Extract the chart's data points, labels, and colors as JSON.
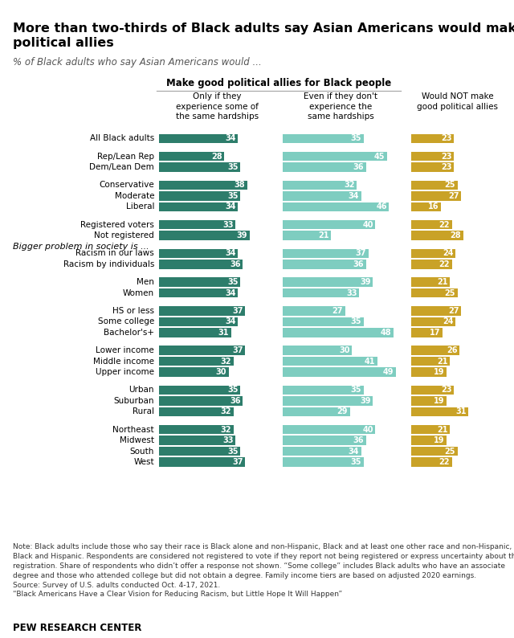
{
  "title": "More than two-thirds of Black adults say Asian Americans would make good\npolitical allies",
  "subtitle": "% of Black adults who say Asian Americans would ...",
  "col1_header": "Make good political allies for Black people",
  "col1a_header": "Only if they\nexperience some of\nthe same hardships",
  "col1b_header": "Even if they don't\nexperience the\nsame hardships",
  "col2_header": "Would NOT make\ngood political allies",
  "rows": [
    {
      "label": "All Black adults",
      "v1": 34,
      "v2": 35,
      "v3": 23,
      "gap_before": false,
      "section": null
    },
    {
      "label": null,
      "v1": null,
      "v2": null,
      "v3": null,
      "gap_before": false,
      "section": null
    },
    {
      "label": "Rep/Lean Rep",
      "v1": 28,
      "v2": 45,
      "v3": 23,
      "gap_before": false,
      "section": null
    },
    {
      "label": "Dem/Lean Dem",
      "v1": 35,
      "v2": 36,
      "v3": 23,
      "gap_before": false,
      "section": null
    },
    {
      "label": null,
      "v1": null,
      "v2": null,
      "v3": null,
      "gap_before": false,
      "section": null
    },
    {
      "label": "Conservative",
      "v1": 38,
      "v2": 32,
      "v3": 25,
      "gap_before": false,
      "section": null
    },
    {
      "label": "Moderate",
      "v1": 35,
      "v2": 34,
      "v3": 27,
      "gap_before": false,
      "section": null
    },
    {
      "label": "Liberal",
      "v1": 34,
      "v2": 46,
      "v3": 16,
      "gap_before": false,
      "section": null
    },
    {
      "label": null,
      "v1": null,
      "v2": null,
      "v3": null,
      "gap_before": false,
      "section": null
    },
    {
      "label": "Registered voters",
      "v1": 33,
      "v2": 40,
      "v3": 22,
      "gap_before": false,
      "section": null
    },
    {
      "label": "Not registered",
      "v1": 39,
      "v2": 21,
      "v3": 28,
      "gap_before": false,
      "section": null
    },
    {
      "label": null,
      "v1": null,
      "v2": null,
      "v3": null,
      "gap_before": false,
      "section": "Bigger problem in society is ..."
    },
    {
      "label": "Racism in our laws",
      "v1": 34,
      "v2": 37,
      "v3": 24,
      "gap_before": false,
      "section": null
    },
    {
      "label": "Racism by individuals",
      "v1": 36,
      "v2": 36,
      "v3": 22,
      "gap_before": false,
      "section": null
    },
    {
      "label": null,
      "v1": null,
      "v2": null,
      "v3": null,
      "gap_before": false,
      "section": null
    },
    {
      "label": "Men",
      "v1": 35,
      "v2": 39,
      "v3": 21,
      "gap_before": false,
      "section": null
    },
    {
      "label": "Women",
      "v1": 34,
      "v2": 33,
      "v3": 25,
      "gap_before": false,
      "section": null
    },
    {
      "label": null,
      "v1": null,
      "v2": null,
      "v3": null,
      "gap_before": false,
      "section": null
    },
    {
      "label": "HS or less",
      "v1": 37,
      "v2": 27,
      "v3": 27,
      "gap_before": false,
      "section": null
    },
    {
      "label": "Some college",
      "v1": 34,
      "v2": 35,
      "v3": 24,
      "gap_before": false,
      "section": null
    },
    {
      "label": "Bachelor's+",
      "v1": 31,
      "v2": 48,
      "v3": 17,
      "gap_before": false,
      "section": null
    },
    {
      "label": null,
      "v1": null,
      "v2": null,
      "v3": null,
      "gap_before": false,
      "section": null
    },
    {
      "label": "Lower income",
      "v1": 37,
      "v2": 30,
      "v3": 26,
      "gap_before": false,
      "section": null
    },
    {
      "label": "Middle income",
      "v1": 32,
      "v2": 41,
      "v3": 21,
      "gap_before": false,
      "section": null
    },
    {
      "label": "Upper income",
      "v1": 30,
      "v2": 49,
      "v3": 19,
      "gap_before": false,
      "section": null
    },
    {
      "label": null,
      "v1": null,
      "v2": null,
      "v3": null,
      "gap_before": false,
      "section": null
    },
    {
      "label": "Urban",
      "v1": 35,
      "v2": 35,
      "v3": 23,
      "gap_before": false,
      "section": null
    },
    {
      "label": "Suburban",
      "v1": 36,
      "v2": 39,
      "v3": 19,
      "gap_before": false,
      "section": null
    },
    {
      "label": "Rural",
      "v1": 32,
      "v2": 29,
      "v3": 31,
      "gap_before": false,
      "section": null
    },
    {
      "label": null,
      "v1": null,
      "v2": null,
      "v3": null,
      "gap_before": false,
      "section": null
    },
    {
      "label": "Northeast",
      "v1": 32,
      "v2": 40,
      "v3": 21,
      "gap_before": false,
      "section": null
    },
    {
      "label": "Midwest",
      "v1": 33,
      "v2": 36,
      "v3": 19,
      "gap_before": false,
      "section": null
    },
    {
      "label": "South",
      "v1": 35,
      "v2": 34,
      "v3": 25,
      "gap_before": false,
      "section": null
    },
    {
      "label": "West",
      "v1": 37,
      "v2": 35,
      "v3": 22,
      "gap_before": false,
      "section": null
    }
  ],
  "color1": "#2d7d6b",
  "color2": "#7ecdc0",
  "color3": "#c9a227",
  "note_text": "Note: Black adults include those who say their race is Black alone and non-Hispanic, Black and at least one other race and non-Hispanic, or\nBlack and Hispanic. Respondents are considered not registered to vote if they report not being registered or express uncertainty about their\nregistration. Share of respondents who didn’t offer a response not shown. “Some college” includes Black adults who have an associate\ndegree and those who attended college but did not obtain a degree. Family income tiers are based on adjusted 2020 earnings.\nSource: Survey of U.S. adults conducted Oct. 4-17, 2021.\n“Black Americans Have a Clear Vision for Reducing Racism, but Little Hope It Will Happen”",
  "pew_text": "PEW RESEARCH CENTER"
}
